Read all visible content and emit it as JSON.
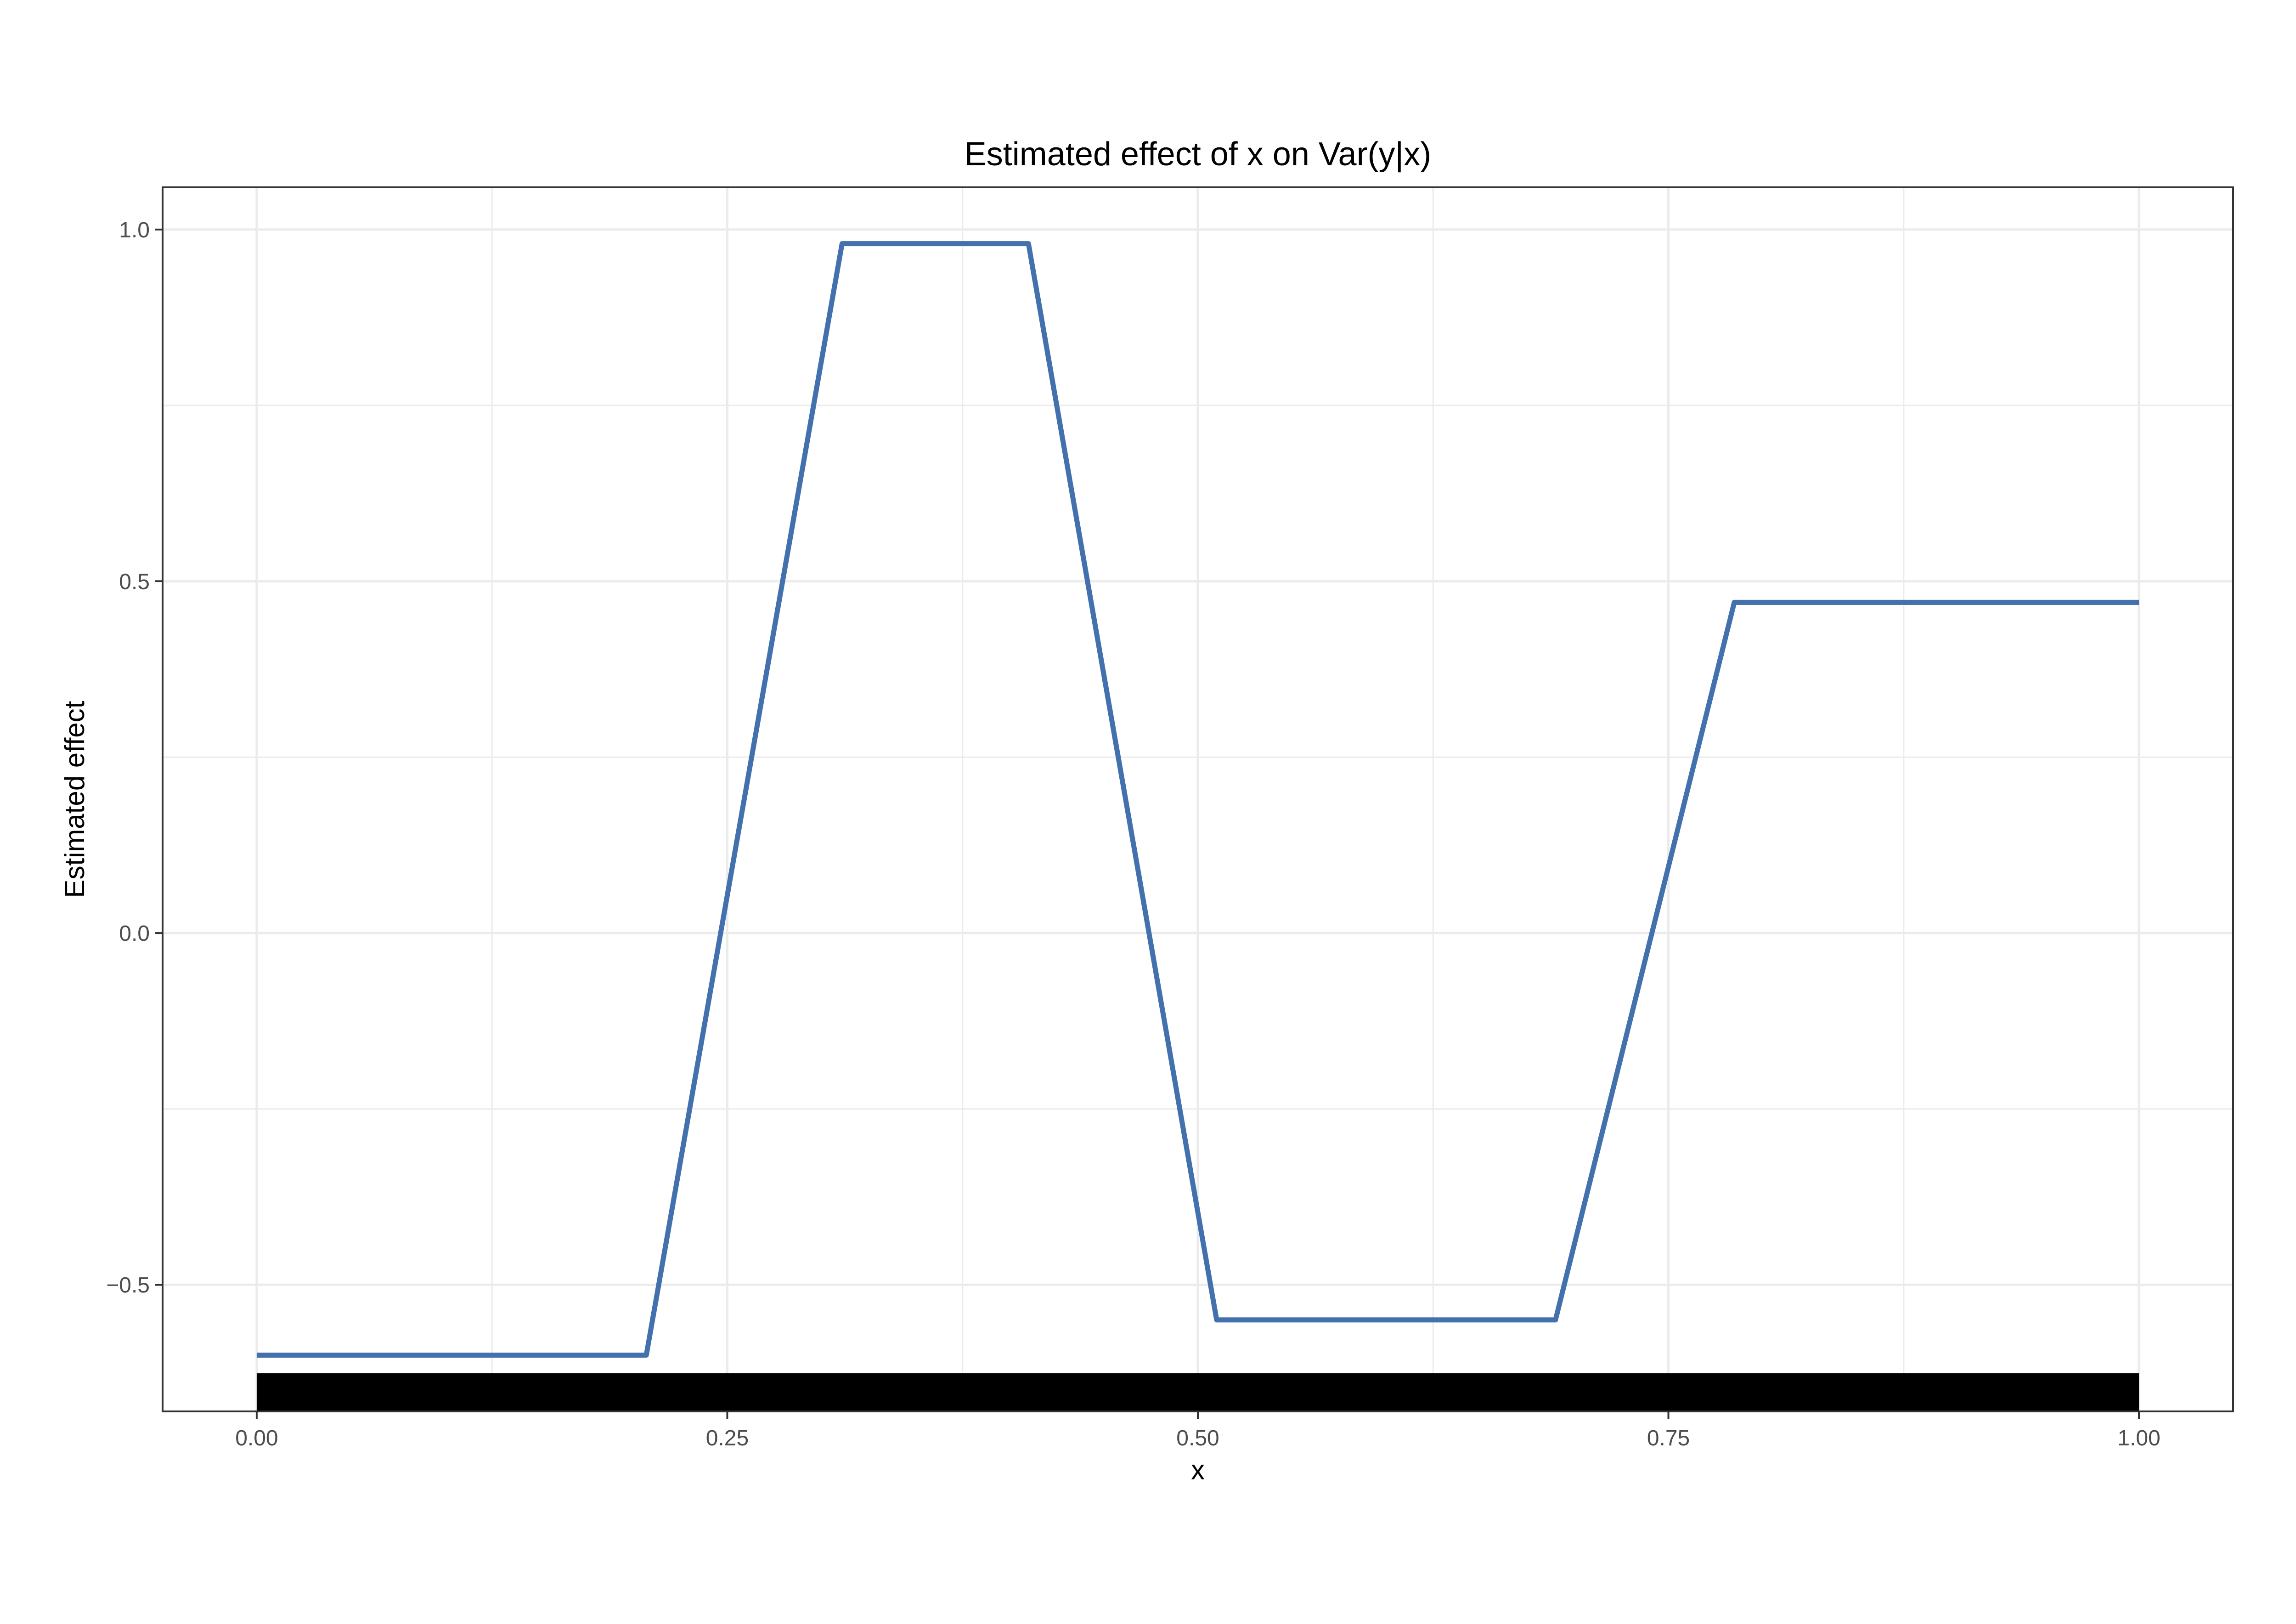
{
  "chart_data": {
    "type": "line",
    "title": "Estimated effect of x on Var(y|x)",
    "xlabel": "x",
    "ylabel": "Estimated effect",
    "xlim": [
      -0.05,
      1.05
    ],
    "ylim": [
      -0.68,
      1.06
    ],
    "x_ticks": [
      0.0,
      0.25,
      0.5,
      0.75,
      1.0
    ],
    "x_tick_labels": [
      "0.00",
      "0.25",
      "0.50",
      "0.75",
      "1.00"
    ],
    "y_ticks": [
      -0.5,
      0.0,
      0.5,
      1.0
    ],
    "y_tick_labels": [
      "-0.5",
      "0.0",
      "0.5",
      "1.0"
    ],
    "grid": true,
    "legend": "none",
    "series": [
      {
        "color": "#4271ae",
        "x": [
          0.0,
          0.207,
          0.311,
          0.41,
          0.51,
          0.69,
          0.785,
          1.0
        ],
        "y": [
          -0.6,
          -0.6,
          0.98,
          0.98,
          -0.55,
          -0.55,
          0.47,
          0.47
        ]
      }
    ],
    "rug": {
      "x_from": 0.0,
      "x_to": 1.0,
      "color": "#000000"
    }
  }
}
